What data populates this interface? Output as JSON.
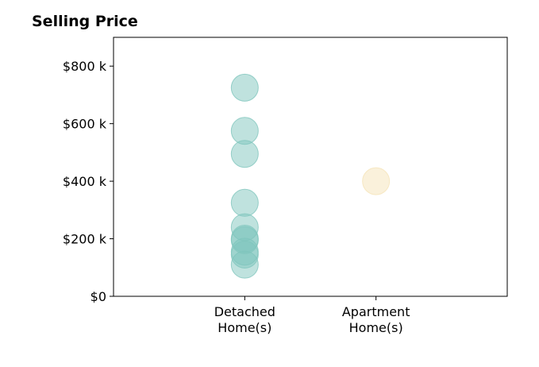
{
  "chart_data": {
    "type": "scatter",
    "title": "Selling Price",
    "xlabel": "",
    "ylabel": "",
    "categories": [
      [
        "Detached",
        "Home(s)"
      ],
      [
        "Apartment",
        "Home(s)"
      ]
    ],
    "ylim": [
      0,
      900000
    ],
    "yticks": [
      {
        "value": 0,
        "label": "$0"
      },
      {
        "value": 200000,
        "label": "$200 k"
      },
      {
        "value": 400000,
        "label": "$400 k"
      },
      {
        "value": 600000,
        "label": "$600 k"
      },
      {
        "value": 800000,
        "label": "$800 k"
      }
    ],
    "grid": false,
    "series": [
      {
        "category_index": 0,
        "color": "#7fc6bd",
        "values": [
          725000,
          575000,
          495000,
          325000,
          240000,
          200000,
          195000,
          155000,
          145000,
          110000
        ]
      },
      {
        "category_index": 1,
        "color": "#f5e3b8",
        "values": [
          400000
        ]
      }
    ]
  }
}
